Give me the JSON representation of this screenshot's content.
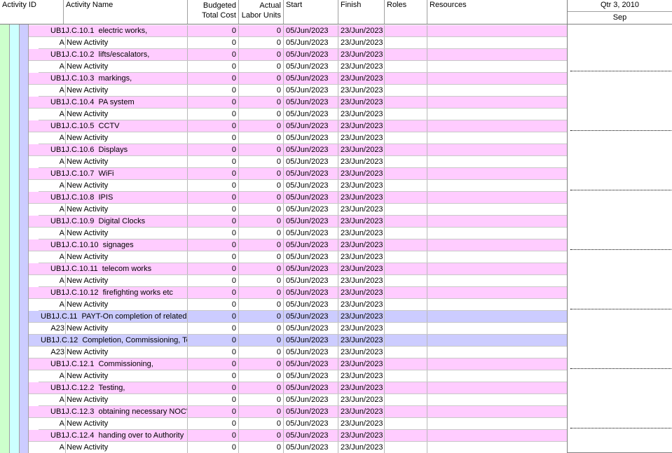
{
  "columns": {
    "activity_id": "Activity ID",
    "activity_name": "Activity Name",
    "budgeted_line1": "Budgeted",
    "budgeted_line2": "Total Cost",
    "labor_line1": "Actual",
    "labor_line2": "Labor Units",
    "start": "Start",
    "finish": "Finish",
    "roles": "Roles",
    "resources": "Resources"
  },
  "timescale": {
    "quarter": "Qtr 3, 2010",
    "month": "Sep"
  },
  "colors": {
    "wbs_level2": "#ffccff",
    "wbs_level1": "#ccccff",
    "activity": "#ffffff",
    "band_green": "#ccffcc",
    "band_cyan": "#ccffff",
    "band_lavender": "#ccccff"
  },
  "rows": [
    {
      "type": "wbs2",
      "id": "UB1J.C.10.1",
      "name": "electric works,",
      "cost": "0",
      "labor": "0",
      "start": "05/Jun/2023",
      "finish": "23/Jun/2023"
    },
    {
      "type": "act",
      "id": "A",
      "name": "New Activity",
      "cost": "0",
      "labor": "0",
      "start": "05/Jun/2023",
      "finish": "23/Jun/2023"
    },
    {
      "type": "wbs2",
      "id": "UB1J.C.10.2",
      "name": "lifts/escalators,",
      "cost": "0",
      "labor": "0",
      "start": "05/Jun/2023",
      "finish": "23/Jun/2023"
    },
    {
      "type": "act",
      "id": "A",
      "name": "New Activity",
      "cost": "0",
      "labor": "0",
      "start": "05/Jun/2023",
      "finish": "23/Jun/2023"
    },
    {
      "type": "wbs2",
      "id": "UB1J.C.10.3",
      "name": "markings,",
      "cost": "0",
      "labor": "0",
      "start": "05/Jun/2023",
      "finish": "23/Jun/2023"
    },
    {
      "type": "act",
      "id": "A",
      "name": "New Activity",
      "cost": "0",
      "labor": "0",
      "start": "05/Jun/2023",
      "finish": "23/Jun/2023"
    },
    {
      "type": "wbs2",
      "id": "UB1J.C.10.4",
      "name": "PA system",
      "cost": "0",
      "labor": "0",
      "start": "05/Jun/2023",
      "finish": "23/Jun/2023"
    },
    {
      "type": "act",
      "id": "A",
      "name": "New Activity",
      "cost": "0",
      "labor": "0",
      "start": "05/Jun/2023",
      "finish": "23/Jun/2023"
    },
    {
      "type": "wbs2",
      "id": "UB1J.C.10.5",
      "name": "CCTV",
      "cost": "0",
      "labor": "0",
      "start": "05/Jun/2023",
      "finish": "23/Jun/2023"
    },
    {
      "type": "act",
      "id": "A",
      "name": "New Activity",
      "cost": "0",
      "labor": "0",
      "start": "05/Jun/2023",
      "finish": "23/Jun/2023"
    },
    {
      "type": "wbs2",
      "id": "UB1J.C.10.6",
      "name": "Displays",
      "cost": "0",
      "labor": "0",
      "start": "05/Jun/2023",
      "finish": "23/Jun/2023"
    },
    {
      "type": "act",
      "id": "A",
      "name": "New Activity",
      "cost": "0",
      "labor": "0",
      "start": "05/Jun/2023",
      "finish": "23/Jun/2023"
    },
    {
      "type": "wbs2",
      "id": "UB1J.C.10.7",
      "name": "WiFi",
      "cost": "0",
      "labor": "0",
      "start": "05/Jun/2023",
      "finish": "23/Jun/2023"
    },
    {
      "type": "act",
      "id": "A",
      "name": "New Activity",
      "cost": "0",
      "labor": "0",
      "start": "05/Jun/2023",
      "finish": "23/Jun/2023"
    },
    {
      "type": "wbs2",
      "id": "UB1J.C.10.8",
      "name": "IPIS",
      "cost": "0",
      "labor": "0",
      "start": "05/Jun/2023",
      "finish": "23/Jun/2023"
    },
    {
      "type": "act",
      "id": "A",
      "name": "New Activity",
      "cost": "0",
      "labor": "0",
      "start": "05/Jun/2023",
      "finish": "23/Jun/2023"
    },
    {
      "type": "wbs2",
      "id": "UB1J.C.10.9",
      "name": "Digital Clocks",
      "cost": "0",
      "labor": "0",
      "start": "05/Jun/2023",
      "finish": "23/Jun/2023"
    },
    {
      "type": "act",
      "id": "A",
      "name": "New Activity",
      "cost": "0",
      "labor": "0",
      "start": "05/Jun/2023",
      "finish": "23/Jun/2023"
    },
    {
      "type": "wbs2",
      "id": "UB1J.C.10.10",
      "name": "signages",
      "cost": "0",
      "labor": "0",
      "start": "05/Jun/2023",
      "finish": "23/Jun/2023"
    },
    {
      "type": "act",
      "id": "A",
      "name": "New Activity",
      "cost": "0",
      "labor": "0",
      "start": "05/Jun/2023",
      "finish": "23/Jun/2023"
    },
    {
      "type": "wbs2",
      "id": "UB1J.C.10.11",
      "name": "telecom works",
      "cost": "0",
      "labor": "0",
      "start": "05/Jun/2023",
      "finish": "23/Jun/2023"
    },
    {
      "type": "act",
      "id": "A",
      "name": "New Activity",
      "cost": "0",
      "labor": "0",
      "start": "05/Jun/2023",
      "finish": "23/Jun/2023"
    },
    {
      "type": "wbs2",
      "id": "UB1J.C.10.12",
      "name": "firefighting works etc",
      "cost": "0",
      "labor": "0",
      "start": "05/Jun/2023",
      "finish": "23/Jun/2023"
    },
    {
      "type": "act",
      "id": "A",
      "name": "New Activity",
      "cost": "0",
      "labor": "0",
      "start": "05/Jun/2023",
      "finish": "23/Jun/2023"
    },
    {
      "type": "wbs1",
      "id": "UB1J.C.11",
      "name": "PAYT-On completion of related e",
      "cost": "0",
      "labor": "0",
      "start": "05/Jun/2023",
      "finish": "23/Jun/2023"
    },
    {
      "type": "act1",
      "id": "A23",
      "name": "New Activity",
      "cost": "0",
      "labor": "0",
      "start": "05/Jun/2023",
      "finish": "23/Jun/2023"
    },
    {
      "type": "wbs1",
      "id": "UB1J.C.12",
      "name": "Completion, Commissioning, Tes",
      "cost": "0",
      "labor": "0",
      "start": "05/Jun/2023",
      "finish": "23/Jun/2023"
    },
    {
      "type": "act1",
      "id": "A23",
      "name": "New Activity",
      "cost": "0",
      "labor": "0",
      "start": "05/Jun/2023",
      "finish": "23/Jun/2023"
    },
    {
      "type": "wbs2",
      "id": "UB1J.C.12.1",
      "name": "Commissioning,",
      "cost": "0",
      "labor": "0",
      "start": "05/Jun/2023",
      "finish": "23/Jun/2023"
    },
    {
      "type": "act",
      "id": "A",
      "name": "New Activity",
      "cost": "0",
      "labor": "0",
      "start": "05/Jun/2023",
      "finish": "23/Jun/2023"
    },
    {
      "type": "wbs2",
      "id": "UB1J.C.12.2",
      "name": "Testing,",
      "cost": "0",
      "labor": "0",
      "start": "05/Jun/2023",
      "finish": "23/Jun/2023"
    },
    {
      "type": "act",
      "id": "A",
      "name": "New Activity",
      "cost": "0",
      "labor": "0",
      "start": "05/Jun/2023",
      "finish": "23/Jun/2023"
    },
    {
      "type": "wbs2",
      "id": "UB1J.C.12.3",
      "name": "obtaining necessary NOC's",
      "cost": "0",
      "labor": "0",
      "start": "05/Jun/2023",
      "finish": "23/Jun/2023"
    },
    {
      "type": "act",
      "id": "A",
      "name": "New Activity",
      "cost": "0",
      "labor": "0",
      "start": "05/Jun/2023",
      "finish": "23/Jun/2023"
    },
    {
      "type": "wbs2",
      "id": "UB1J.C.12.4",
      "name": "handing over to Authority",
      "cost": "0",
      "labor": "0",
      "start": "05/Jun/2023",
      "finish": "23/Jun/2023"
    },
    {
      "type": "act",
      "id": "A",
      "name": "New Activity",
      "cost": "0",
      "labor": "0",
      "start": "05/Jun/2023",
      "finish": "23/Jun/2023"
    }
  ]
}
